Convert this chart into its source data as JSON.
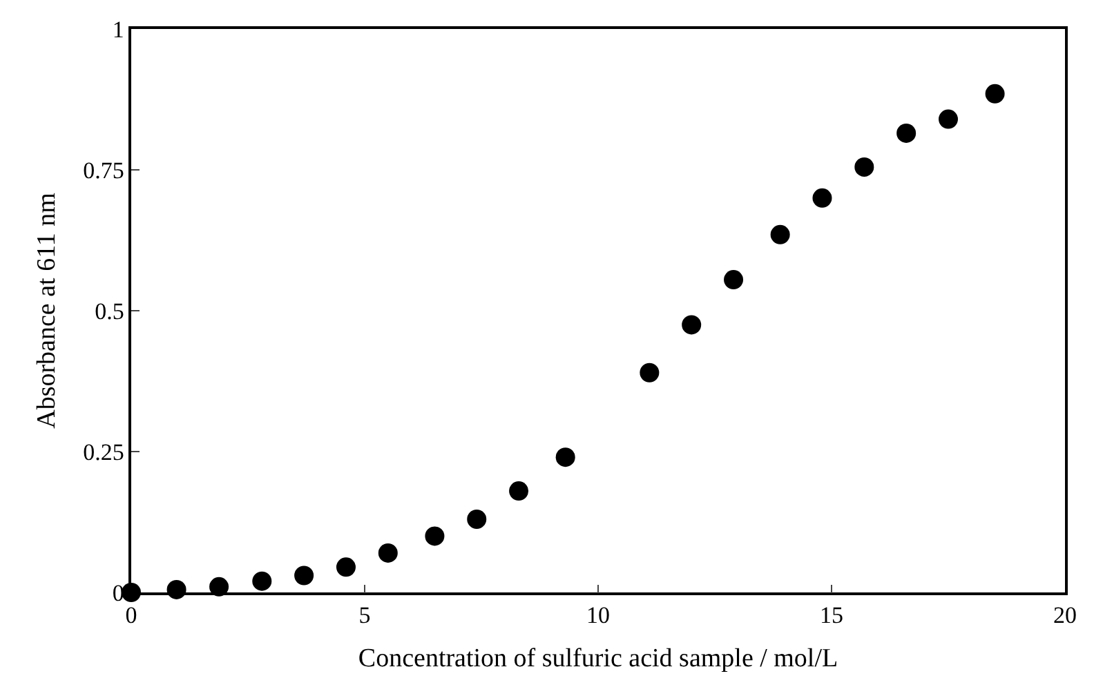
{
  "chart_data": {
    "type": "scatter",
    "xlabel": "Concentration of sulfuric acid sample / mol/L",
    "ylabel": "Absorbance at 611 nm",
    "x": [
      0,
      0.97,
      1.88,
      2.8,
      3.7,
      4.6,
      5.5,
      6.5,
      7.4,
      8.3,
      9.3,
      11.1,
      12.0,
      12.9,
      13.9,
      14.8,
      15.7,
      16.6,
      17.5,
      18.5
    ],
    "series": [
      {
        "color": "#000000",
        "values": [
          0,
          0.005,
          0.01,
          0.02,
          0.03,
          0.045,
          0.07,
          0.1,
          0.13,
          0.18,
          0.24,
          0.39,
          0.475,
          0.555,
          0.635,
          0.7,
          0.755,
          0.815,
          0.84,
          0.885
        ]
      }
    ],
    "xlim": [
      0,
      20
    ],
    "xticks": [
      0,
      5,
      10,
      15,
      20
    ],
    "ylim": [
      0,
      1
    ],
    "yticks": [
      0,
      0.25,
      0.5,
      0.75,
      1
    ],
    "marker": "circle"
  }
}
